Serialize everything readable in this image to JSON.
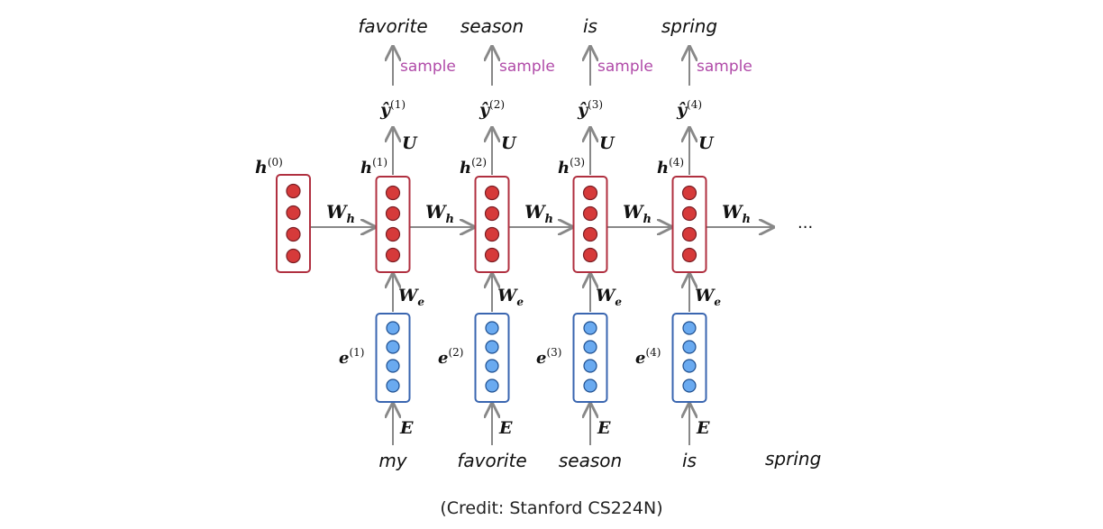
{
  "diagram": {
    "initial_hidden_label": "h",
    "initial_hidden_index": "(0)",
    "hidden_weight_label": "W",
    "hidden_weight_sub": "h",
    "embed_weight_label": "W",
    "embed_weight_sub": "e",
    "output_weight_label": "U",
    "embedding_matrix_label": "E",
    "sample_label": "sample",
    "continuation": "...",
    "final_input_word": "spring",
    "steps": [
      {
        "index": "(1)",
        "input_word": "my",
        "output_word": "favorite",
        "hidden_label": "h",
        "embed_label": "e",
        "output_label": "ŷ"
      },
      {
        "index": "(2)",
        "input_word": "favorite",
        "output_word": "season",
        "hidden_label": "h",
        "embed_label": "e",
        "output_label": "ŷ"
      },
      {
        "index": "(3)",
        "input_word": "season",
        "output_word": "is",
        "hidden_label": "h",
        "embed_label": "e",
        "output_label": "ŷ"
      },
      {
        "index": "(4)",
        "input_word": "is",
        "output_word": "spring",
        "hidden_label": "h",
        "embed_label": "e",
        "output_label": "ŷ"
      }
    ],
    "colors": {
      "hidden_box": "#b03040",
      "hidden_node": "#d63a3a",
      "embed_box": "#3a66b0",
      "embed_node": "#6aaaf0",
      "arrow": "#888888",
      "sample_text": "#b04aa8"
    }
  },
  "caption": "(Credit: Stanford CS224N)"
}
